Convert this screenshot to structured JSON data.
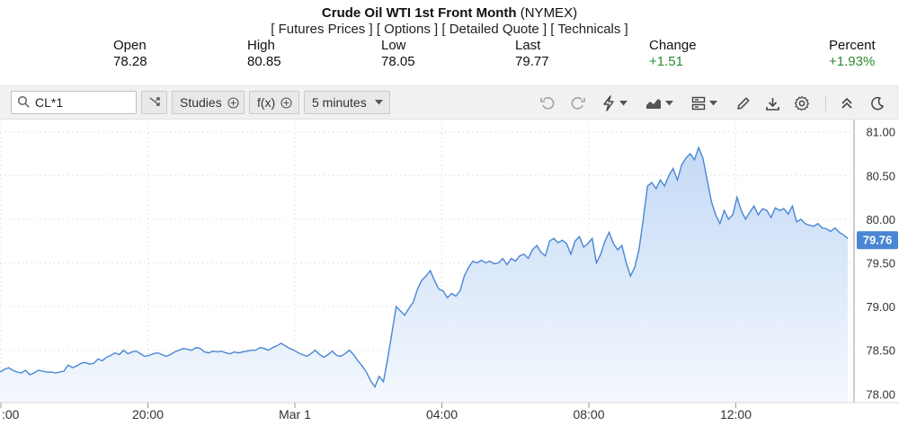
{
  "header": {
    "title": "Crude Oil WTI 1st Front Month",
    "exchange": "(NYMEX)",
    "links": [
      "[ Futures Prices ]",
      "[ Options ]",
      "[ Detailed Quote ]",
      "[ Technicals ]"
    ]
  },
  "quote": {
    "open_label": "Open",
    "open": "78.28",
    "high_label": "High",
    "high": "80.85",
    "low_label": "Low",
    "low": "78.05",
    "last_label": "Last",
    "last": "79.77",
    "change_label": "Change",
    "change": "+1.51",
    "percent_label": "Percent",
    "percent": "+1.93%"
  },
  "toolbar": {
    "symbol": "CL*1",
    "studies_label": "Studies",
    "fx_label": "f(x)",
    "interval": "5 minutes",
    "icons": [
      "search-icon",
      "shuffle-icon",
      "plus-circle-icon",
      "chevron-down-icon",
      "undo-icon",
      "redo-icon",
      "flash-icon",
      "chart-type-icon",
      "template-icon",
      "pencil-icon",
      "download-icon",
      "gear-icon",
      "collapse-icon",
      "dark-mode-icon"
    ]
  },
  "colors": {
    "line": "#4a86d4",
    "fill_top": "#c4daf6",
    "fill_bottom": "#f4f8fd",
    "up": "#2b8a2b",
    "price_tag": "#4a86d4"
  },
  "chart_data": {
    "type": "area",
    "x_ticks": [
      ":00",
      "20:00",
      "Mar 1",
      "04:00",
      "08:00",
      "12:00"
    ],
    "y_ticks": [
      "81.00",
      "80.50",
      "80.00",
      "79.50",
      "79.00",
      "78.50",
      "78.00"
    ],
    "ylim": [
      77.9,
      81.1
    ],
    "grid": true,
    "last_price_label": "79.76",
    "series": [
      {
        "values": [
          78.25,
          78.28,
          78.3,
          78.27,
          78.25,
          78.24,
          78.27,
          78.22,
          78.24,
          78.27,
          78.26,
          78.25,
          78.25,
          78.24,
          78.25,
          78.26,
          78.33,
          78.3,
          78.32,
          78.35,
          78.36,
          78.34,
          78.35,
          78.4,
          78.38,
          78.42,
          78.44,
          78.47,
          78.45,
          78.5,
          78.46,
          78.48,
          78.49,
          78.46,
          78.43,
          78.44,
          78.46,
          78.47,
          78.45,
          78.43,
          78.45,
          78.48,
          78.5,
          78.52,
          78.51,
          78.5,
          78.53,
          78.52,
          78.48,
          78.47,
          78.49,
          78.48,
          78.49,
          78.47,
          78.46,
          78.48,
          78.47,
          78.48,
          78.49,
          78.5,
          78.5,
          78.53,
          78.52,
          78.5,
          78.53,
          78.55,
          78.58,
          78.55,
          78.52,
          78.5,
          78.47,
          78.45,
          78.43,
          78.46,
          78.5,
          78.45,
          78.42,
          78.45,
          78.49,
          78.44,
          78.43,
          78.46,
          78.5,
          78.45,
          78.38,
          78.32,
          78.25,
          78.15,
          78.08,
          78.2,
          78.14,
          78.4,
          78.7,
          79.0,
          78.95,
          78.9,
          78.98,
          79.05,
          79.2,
          79.3,
          79.35,
          79.41,
          79.3,
          79.2,
          79.18,
          79.1,
          79.15,
          79.12,
          79.18,
          79.35,
          79.45,
          79.52,
          79.5,
          79.53,
          79.5,
          79.52,
          79.49,
          79.5,
          79.55,
          79.48,
          79.55,
          79.52,
          79.58,
          79.6,
          79.55,
          79.65,
          79.7,
          79.62,
          79.58,
          79.75,
          79.78,
          79.73,
          79.76,
          79.72,
          79.6,
          79.75,
          79.8,
          79.68,
          79.72,
          79.78,
          79.5,
          79.6,
          79.75,
          79.85,
          79.72,
          79.65,
          79.7,
          79.5,
          79.35,
          79.45,
          79.65,
          80.0,
          80.38,
          80.42,
          80.35,
          80.45,
          80.38,
          80.5,
          80.58,
          80.45,
          80.62,
          80.7,
          80.75,
          80.68,
          80.82,
          80.7,
          80.45,
          80.2,
          80.05,
          79.95,
          80.1,
          80.0,
          80.05,
          80.25,
          80.1,
          80.0,
          80.08,
          80.15,
          80.05,
          80.12,
          80.1,
          80.02,
          80.13,
          80.1,
          80.12,
          80.06,
          80.15,
          79.97,
          80.0,
          79.95,
          79.93,
          79.92,
          79.95,
          79.9,
          79.89,
          79.86,
          79.9,
          79.85,
          79.82,
          79.78
        ]
      }
    ]
  }
}
